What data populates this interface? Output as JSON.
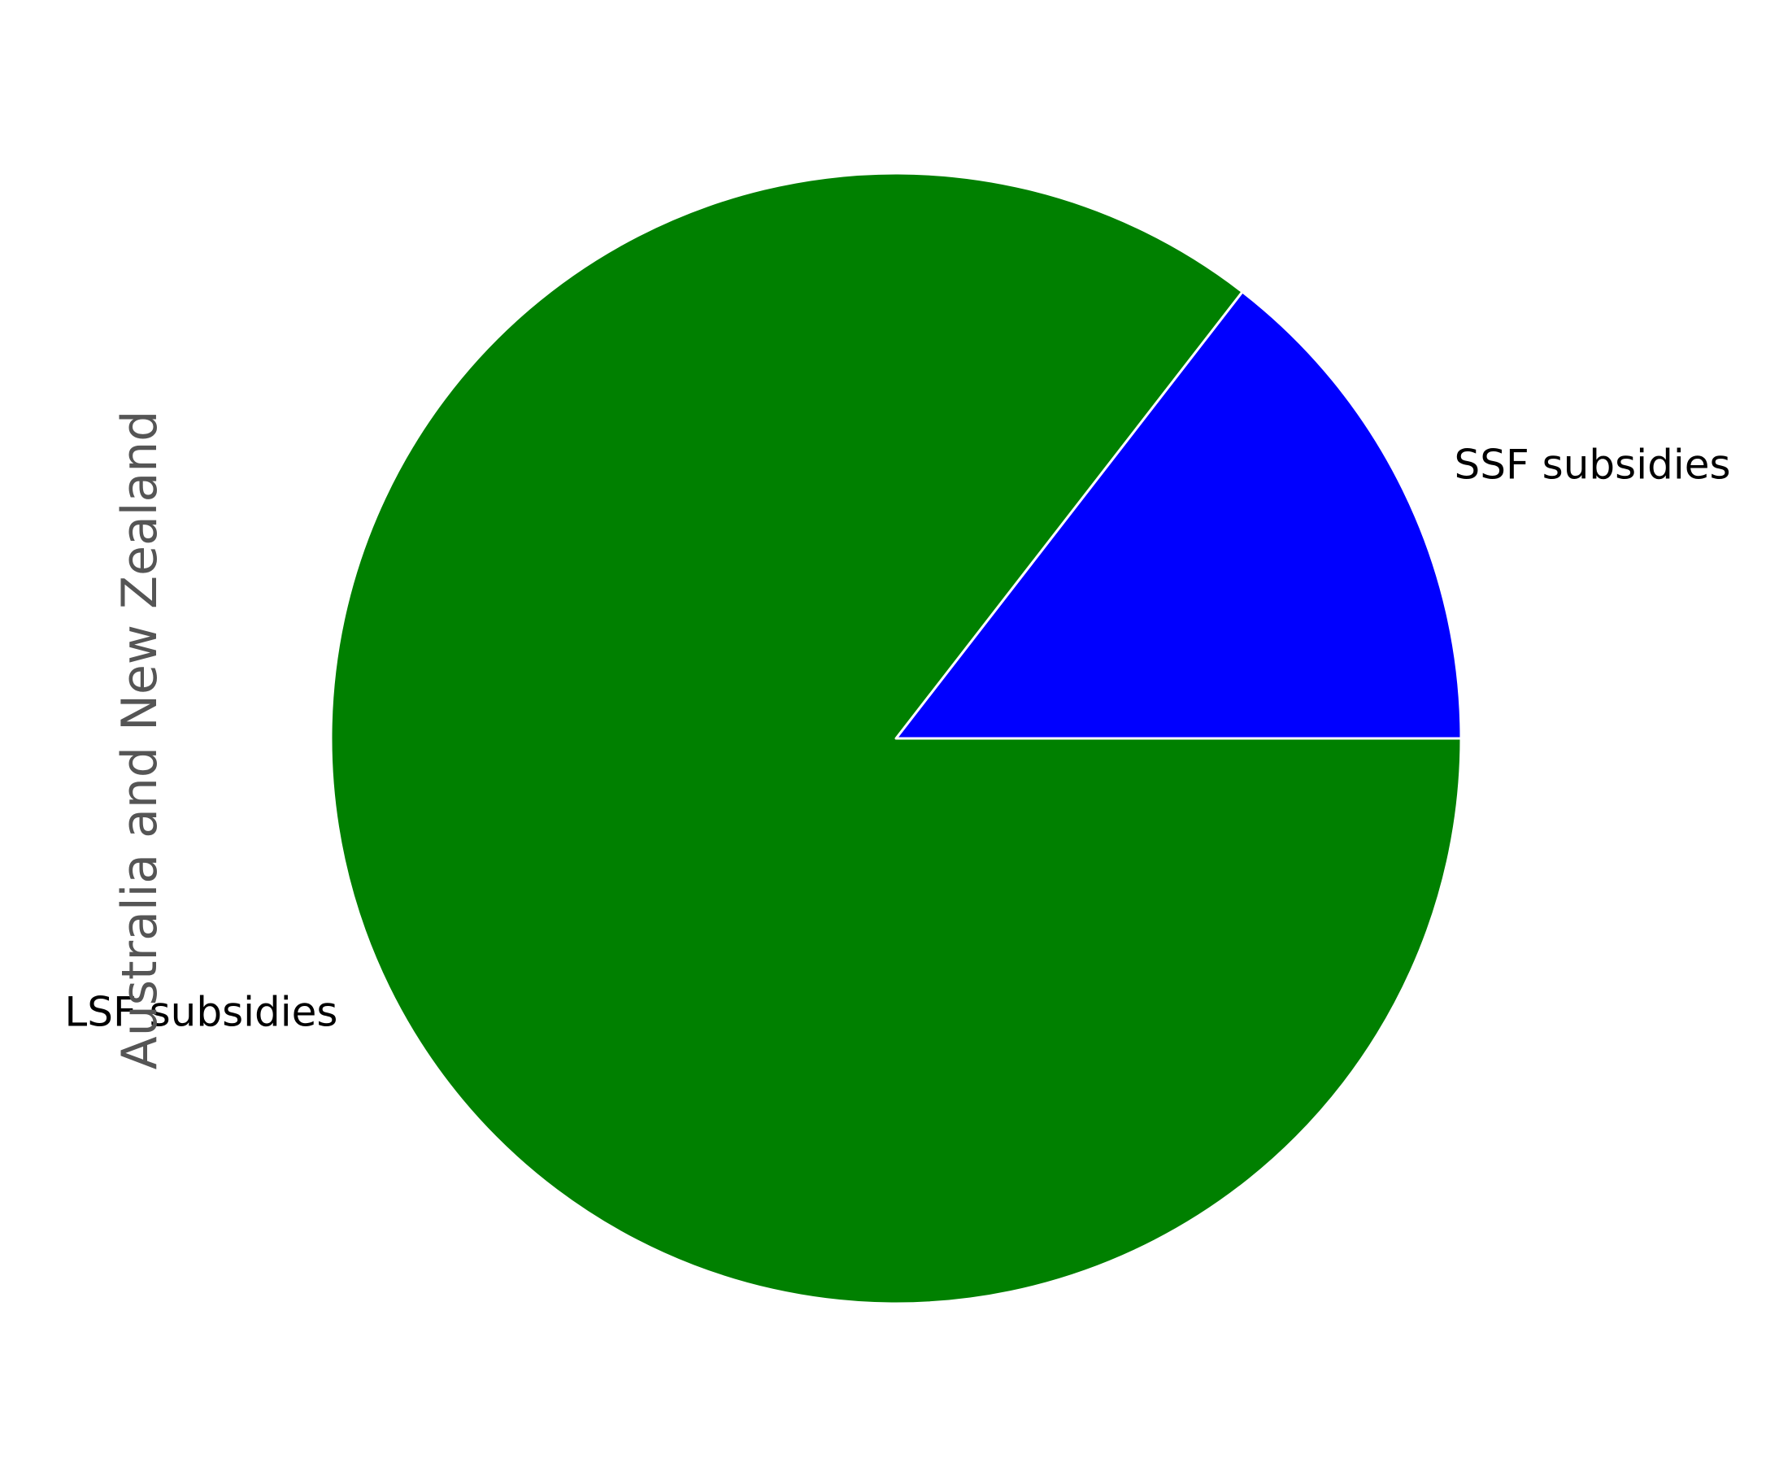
{
  "chart_data": {
    "type": "pie",
    "ylabel": "Australia and New Zealand",
    "slices": [
      {
        "label": "SSF subsidies",
        "value": 14.5,
        "color": "#0000ff"
      },
      {
        "label": "LSF subsidies",
        "value": 85.5,
        "color": "#008000"
      }
    ],
    "start_angle": 0,
    "direction": "counterclockwise",
    "edge_color": "#ffffff"
  }
}
